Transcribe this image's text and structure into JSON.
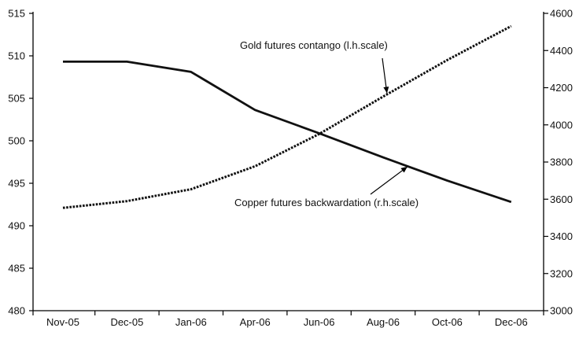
{
  "chart_data": {
    "type": "line",
    "categories": [
      "Nov-05",
      "Dec-05",
      "Jan-06",
      "Apr-06",
      "Jun-06",
      "Aug-06",
      "Oct-06",
      "Dec-06"
    ],
    "left_axis": {
      "min": 480,
      "max": 515,
      "ticks": [
        "480",
        "485",
        "490",
        "495",
        "500",
        "505",
        "510",
        "515"
      ]
    },
    "right_axis": {
      "min": 3000,
      "max": 4600,
      "ticks": [
        "3000",
        "3200",
        "3400",
        "3600",
        "3800",
        "4000",
        "4200",
        "4400",
        "4600"
      ]
    },
    "series": [
      {
        "name": "Gold futures contango (l.h.scale)",
        "axis": "left",
        "style": "dotted",
        "color": "#111111",
        "points": [
          {
            "x": 0,
            "y": 492.1
          },
          {
            "x": 1,
            "y": 492.9
          },
          {
            "x": 2,
            "y": 494.3
          },
          {
            "x": 3,
            "y": 497.0
          },
          {
            "x": 4,
            "y": 500.8
          },
          {
            "x": 5,
            "y": 505.2
          },
          {
            "x": 6,
            "y": 509.5
          },
          {
            "x": 7,
            "y": 513.5
          }
        ]
      },
      {
        "name": "Copper futures backwardation (r.h.scale)",
        "axis": "right",
        "style": "solid",
        "color": "#111111",
        "points": [
          {
            "x": 0,
            "y": 4340
          },
          {
            "x": 1,
            "y": 4340
          },
          {
            "x": 2,
            "y": 4285
          },
          {
            "x": 3,
            "y": 4080
          },
          {
            "x": 4,
            "y": 3955
          },
          {
            "x": 5,
            "y": 3825
          },
          {
            "x": 6,
            "y": 3700
          },
          {
            "x": 7,
            "y": 3585
          }
        ]
      }
    ],
    "annotations": [
      {
        "text": "Gold futures contango (l.h.scale)",
        "series": 0,
        "x": 5.06,
        "y": 505.6
      },
      {
        "text": "Copper futures backwardation (r.h.scale)",
        "series": 1,
        "x": 5.38,
        "y": 3775
      }
    ],
    "grid": false,
    "legend": "none"
  }
}
